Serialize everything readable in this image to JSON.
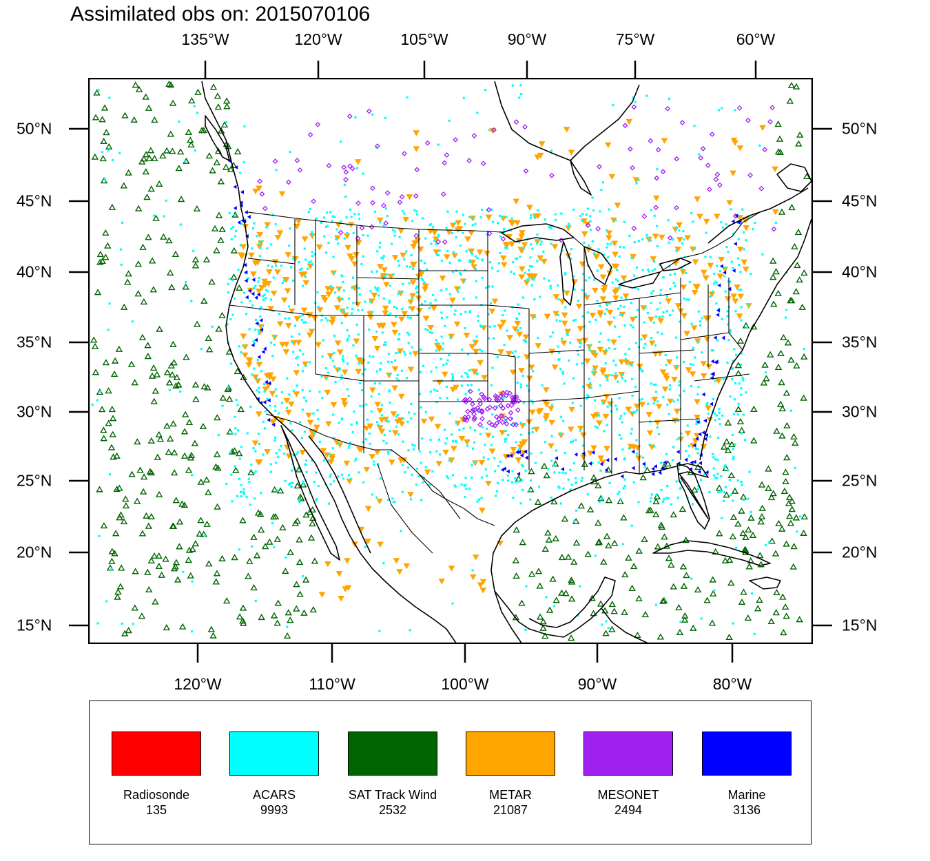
{
  "title": "Assimilated obs on: 2015070106",
  "top_axis_labels": [
    "135°W",
    "120°W",
    "105°W",
    "90°W",
    "75°W",
    "60°W"
  ],
  "bottom_axis_labels": [
    "120°W",
    "110°W",
    "100°W",
    "90°W",
    "80°W"
  ],
  "left_axis_labels": [
    "50°N",
    "45°N",
    "40°N",
    "35°N",
    "30°N",
    "25°N",
    "20°N",
    "15°N"
  ],
  "right_axis_labels": [
    "50°N",
    "45°N",
    "40°N",
    "35°N",
    "30°N",
    "25°N",
    "20°N",
    "15°N"
  ],
  "legend": [
    {
      "label": "Radiosonde",
      "count": "135",
      "color": "#ff0000"
    },
    {
      "label": "ACARS",
      "count": "9993",
      "color": "#00ffff"
    },
    {
      "label": "SAT Track Wind",
      "count": "2532",
      "color": "#006400"
    },
    {
      "label": "METAR",
      "count": "21087",
      "color": "#ffa500"
    },
    {
      "label": "MESONET",
      "count": "2494",
      "color": "#a020f0"
    },
    {
      "label": "Marine",
      "count": "3136",
      "color": "#0000ff"
    }
  ],
  "marker_colors": {
    "acars": "#00ffff",
    "sat_track_wind": "#006400",
    "metar": "#ffa500",
    "mesonet": "#a020f0",
    "marine": "#0000ff"
  }
}
